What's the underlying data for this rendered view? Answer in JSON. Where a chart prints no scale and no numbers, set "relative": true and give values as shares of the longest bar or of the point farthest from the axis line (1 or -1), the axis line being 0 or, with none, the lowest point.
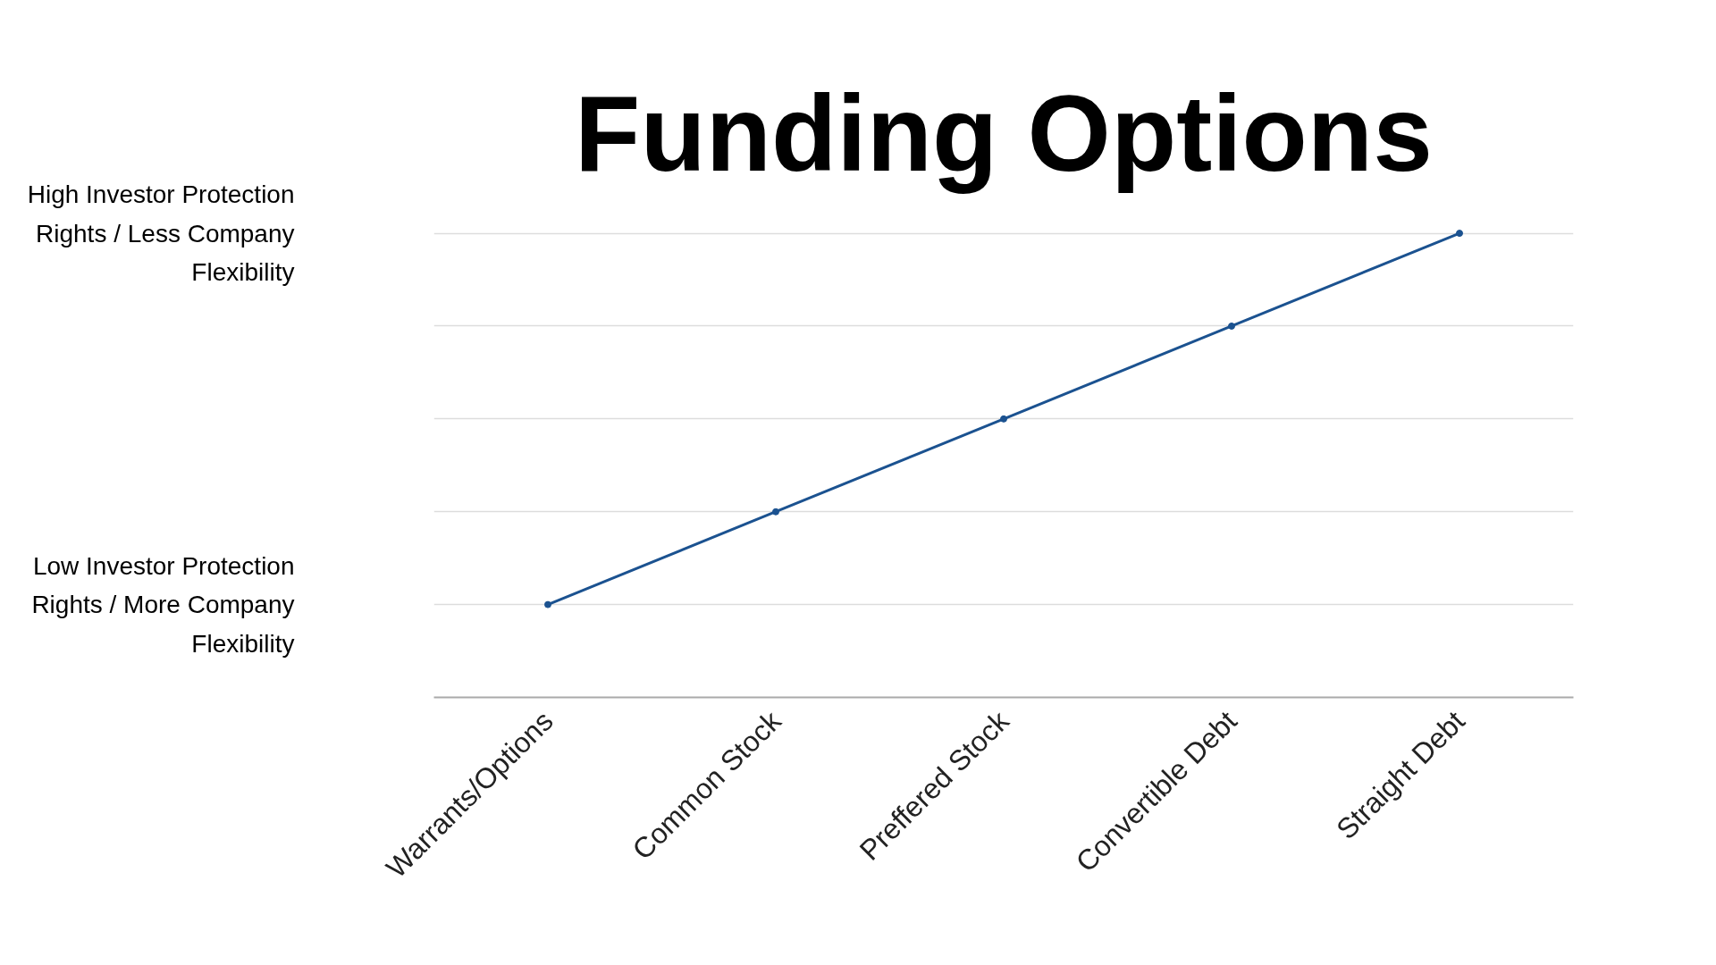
{
  "chart_data": {
    "type": "line",
    "title": "Funding Options",
    "relative": true,
    "categories": [
      "Warrants/Options",
      "Common Stock",
      "Preffered Stock",
      "Convertible Debt",
      "Straight Debt"
    ],
    "series": [
      {
        "color": "#1b5290",
        "values": [
          0.2,
          0.4,
          0.6,
          0.8,
          1.0
        ]
      }
    ],
    "annotations": [
      "High Investor Protection Rights / Less Company Flexibility",
      "Low Investor Protection Rights / More Company Flexibility"
    ],
    "grid": "y",
    "marker": "circle",
    "line_style": "solid"
  }
}
